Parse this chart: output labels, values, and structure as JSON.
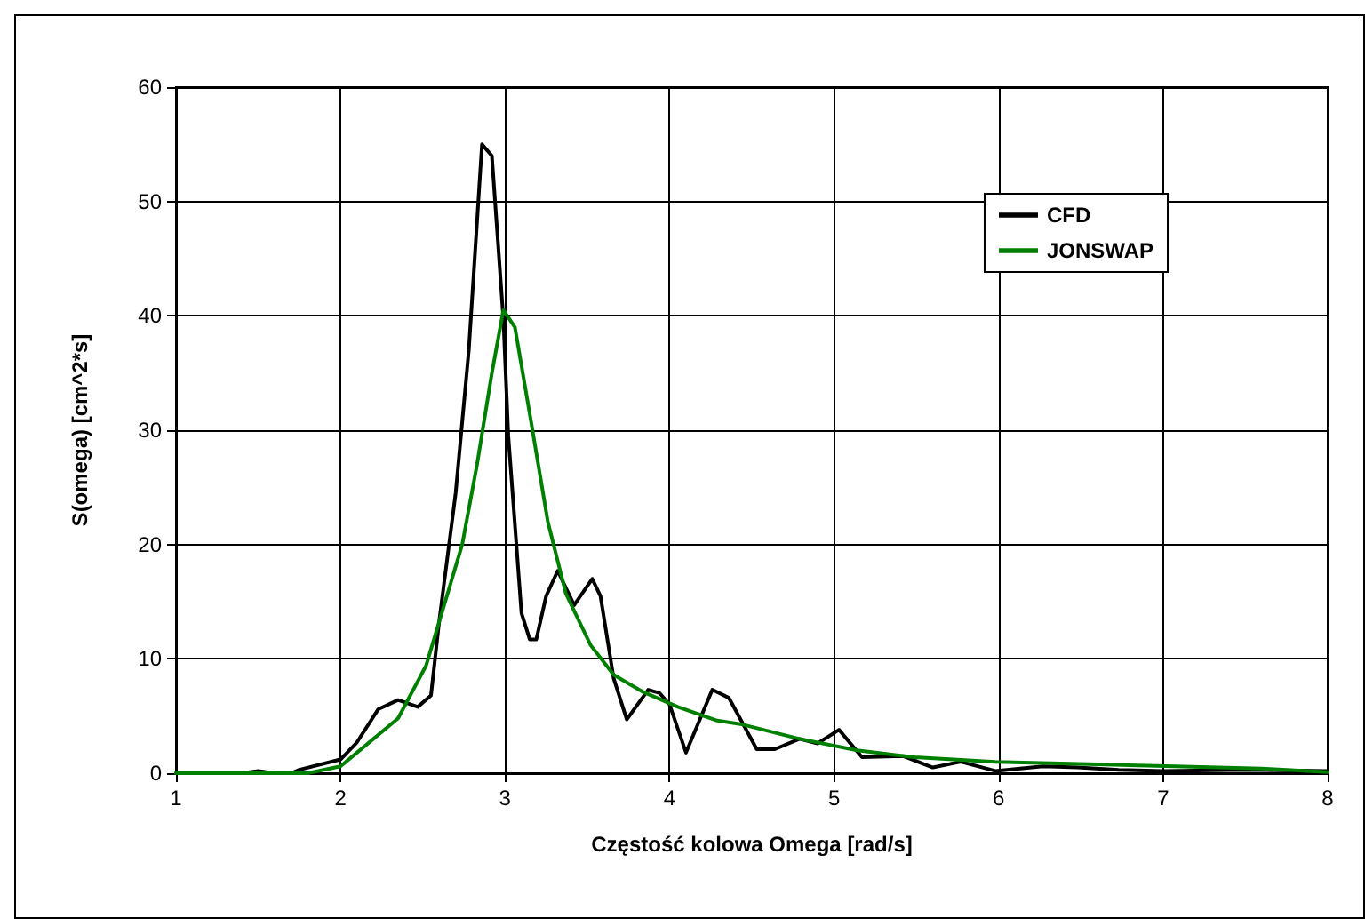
{
  "chart_data": {
    "type": "line",
    "xlabel": "Częstość kolowa Omega [rad/s]",
    "ylabel": "S(omega) [cm^2*s]",
    "xlim": [
      1,
      8
    ],
    "xticks": [
      1,
      2,
      3,
      4,
      5,
      6,
      7,
      8
    ],
    "ylim": [
      0,
      60
    ],
    "yticks": [
      0,
      10,
      20,
      30,
      40,
      50,
      60
    ],
    "grid": true,
    "legend": "top right",
    "marker": "none",
    "line_style": "solid",
    "series": [
      {
        "name": "CFD",
        "color": "#000000",
        "x": [
          1,
          1.4,
          1.5,
          1.6,
          1.7,
          1.75,
          2.0,
          2.1,
          2.23,
          2.35,
          2.47,
          2.55,
          2.6,
          2.7,
          2.78,
          2.86,
          2.92,
          2.99,
          3.02,
          3.1,
          3.15,
          3.19,
          3.25,
          3.32,
          3.42,
          3.53,
          3.58,
          3.66,
          3.74,
          3.87,
          3.94,
          4.0,
          4.1,
          4.26,
          4.36,
          4.53,
          4.64,
          4.79,
          4.9,
          5.03,
          5.17,
          5.42,
          5.6,
          5.77,
          5.98,
          6.27,
          6.48,
          6.73,
          7.0,
          7.5,
          8.0
        ],
        "values": [
          0,
          0,
          0.2,
          0,
          0,
          0.3,
          1.2,
          2.7,
          5.6,
          6.4,
          5.8,
          6.8,
          13.3,
          24.5,
          37,
          55,
          54,
          39.7,
          29.5,
          14,
          11.7,
          11.7,
          15.5,
          17.7,
          14.7,
          17,
          15.5,
          8.3,
          4.7,
          7.3,
          7,
          6,
          1.8,
          7.3,
          6.6,
          2.1,
          2.1,
          3,
          2.6,
          3.8,
          1.4,
          1.5,
          0.5,
          1,
          0.2,
          0.6,
          0.5,
          0.3,
          0.2,
          0.3,
          0.2
        ]
      },
      {
        "name": "JONSWAP",
        "color": "#008000",
        "x": [
          1,
          1.8,
          2.0,
          2.1,
          2.35,
          2.52,
          2.63,
          2.74,
          2.83,
          2.92,
          2.99,
          3.06,
          3.16,
          3.26,
          3.37,
          3.52,
          3.66,
          3.84,
          4.05,
          4.29,
          4.43,
          4.79,
          5.14,
          5.49,
          5.98,
          6.55,
          7.07,
          7.6,
          8.0
        ],
        "values": [
          0,
          0,
          0.6,
          1.8,
          4.8,
          9.4,
          14.7,
          20,
          27,
          35,
          40.5,
          39,
          30.6,
          22,
          15.7,
          11.2,
          8.6,
          7.1,
          5.8,
          4.6,
          4.3,
          3,
          2,
          1.4,
          1,
          0.8,
          0.6,
          0.4,
          0.1
        ]
      }
    ]
  }
}
